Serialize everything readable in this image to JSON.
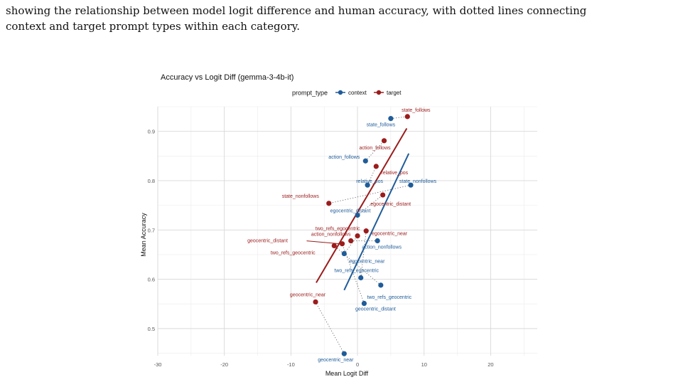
{
  "caption": {
    "line1": "showing the relationship between model logit difference and human accuracy, with dotted lines connecting",
    "line2": "context and target prompt types within each category."
  },
  "chart_data": {
    "type": "scatter",
    "title": "Accuracy vs Logit Diff (gemma-3-4b-it)",
    "xlabel": "Mean Logit Diff",
    "ylabel": "Mean Accuracy",
    "xlim": [
      -30,
      27
    ],
    "ylim": [
      0.445,
      0.95
    ],
    "xticks": [
      -30,
      -20,
      -10,
      0,
      10,
      20
    ],
    "yticks": [
      0.5,
      0.6,
      0.7,
      0.8,
      0.9
    ],
    "grid": true,
    "legend": {
      "title": "prompt_type",
      "position": "top"
    },
    "colors": {
      "context": "#1f5c99",
      "target": "#9b1c1c"
    },
    "series": [
      {
        "name": "context",
        "points": [
          {
            "label": "state_follows",
            "x": 5.0,
            "y": 0.926
          },
          {
            "label": "action_follows",
            "x": 1.2,
            "y": 0.84
          },
          {
            "label": "relative_pos",
            "x": 1.5,
            "y": 0.791
          },
          {
            "label": "state_nonfollows",
            "x": 8.0,
            "y": 0.791
          },
          {
            "label": "egocentric_distant",
            "x": 0.0,
            "y": 0.73
          },
          {
            "label": "action_nonfollows",
            "x": 3.0,
            "y": 0.678
          },
          {
            "label": "egocentric_near",
            "x": -2.0,
            "y": 0.652
          },
          {
            "label": "two_refs_egocentric",
            "x": 0.5,
            "y": 0.603
          },
          {
            "label": "two_refs_geocentric",
            "x": 3.5,
            "y": 0.588
          },
          {
            "label": "geocentric_distant",
            "x": 1.0,
            "y": 0.551
          },
          {
            "label": "geocentric_near",
            "x": -2.0,
            "y": 0.449
          }
        ],
        "fit": {
          "x": [
            -2.0,
            7.7
          ],
          "y": [
            0.578,
            0.855
          ]
        }
      },
      {
        "name": "target",
        "points": [
          {
            "label": "state_follows",
            "x": 7.5,
            "y": 0.93
          },
          {
            "label": "action_follows",
            "x": 4.0,
            "y": 0.881
          },
          {
            "label": "relative_pos",
            "x": 2.8,
            "y": 0.829
          },
          {
            "label": "state_nonfollows",
            "x": -4.3,
            "y": 0.754
          },
          {
            "label": "egocentric_distant",
            "x": 3.8,
            "y": 0.771
          },
          {
            "label": "two_refs_egocentric",
            "x": 1.3,
            "y": 0.698
          },
          {
            "label": "egocentric_near",
            "x": 0.0,
            "y": 0.688
          },
          {
            "label": "action_nonfollows",
            "x": -1.0,
            "y": 0.678
          },
          {
            "label": "geocentric_distant",
            "x": -2.3,
            "y": 0.672
          },
          {
            "label": "two_refs_geocentric",
            "x": -3.5,
            "y": 0.668
          },
          {
            "label": "geocentric_near",
            "x": -6.3,
            "y": 0.554
          }
        ],
        "fit": {
          "x": [
            -6.2,
            7.4
          ],
          "y": [
            0.593,
            0.906
          ]
        }
      }
    ]
  }
}
